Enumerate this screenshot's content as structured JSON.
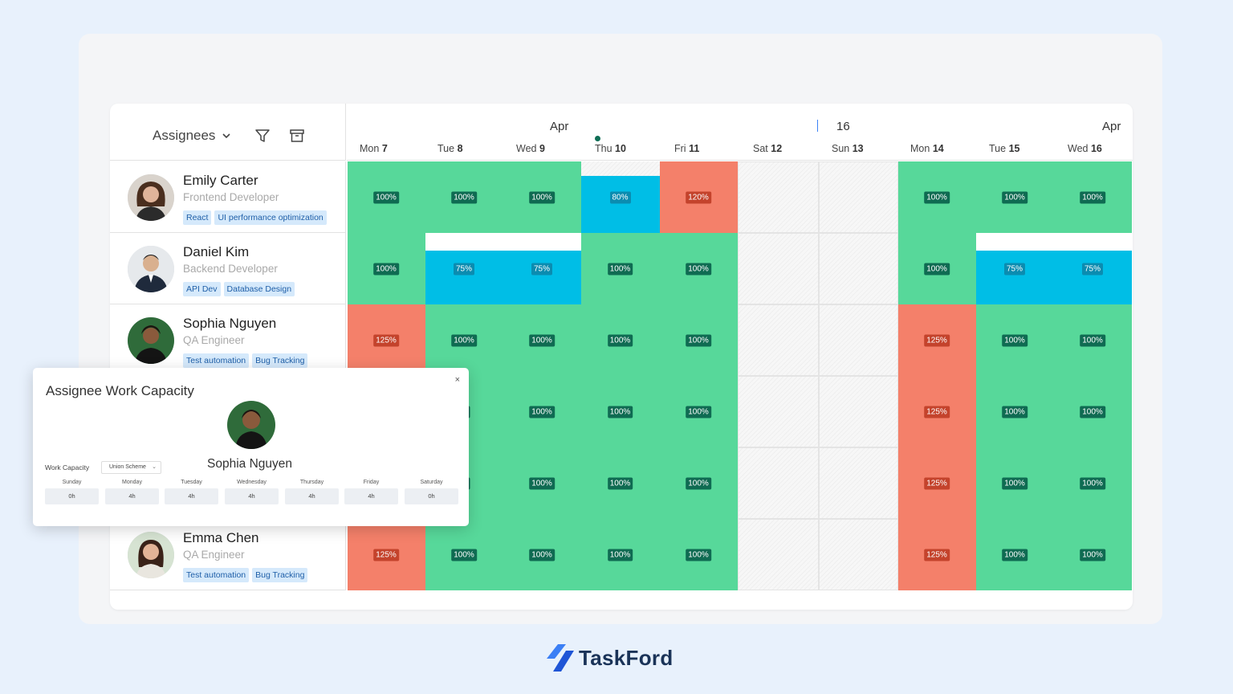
{
  "header": {
    "assignees_label": "Assignees",
    "months": [
      {
        "label": "Apr"
      },
      {
        "label": "16"
      },
      {
        "label": "Apr"
      }
    ],
    "days": [
      {
        "dow": "Mon",
        "num": "7"
      },
      {
        "dow": "Tue",
        "num": "8"
      },
      {
        "dow": "Wed",
        "num": "9"
      },
      {
        "dow": "Thu",
        "num": "10"
      },
      {
        "dow": "Fri",
        "num": "11"
      },
      {
        "dow": "Sat",
        "num": "12"
      },
      {
        "dow": "Sun",
        "num": "13"
      },
      {
        "dow": "Mon",
        "num": "14"
      },
      {
        "dow": "Tue",
        "num": "15"
      },
      {
        "dow": "Wed",
        "num": "16"
      }
    ]
  },
  "assignees": [
    {
      "name": "Emily Carter",
      "role": "Frontend Developer",
      "tags": [
        "React",
        "UI performance optimization"
      ],
      "capacity": [
        "100%",
        "100%",
        "100%",
        "80%",
        "120%",
        "",
        "",
        "100%",
        "100%",
        "100%"
      ]
    },
    {
      "name": "Daniel Kim",
      "role": "Backend Developer",
      "tags": [
        "API Dev",
        "Database Design"
      ],
      "capacity": [
        "100%",
        "75%",
        "75%",
        "100%",
        "100%",
        "",
        "",
        "100%",
        "75%",
        "75%"
      ]
    },
    {
      "name": "Sophia Nguyen",
      "role": "QA Engineer",
      "tags": [
        "Test automation",
        "Bug Tracking"
      ],
      "capacity": [
        "125%",
        "100%",
        "100%",
        "100%",
        "100%",
        "",
        "",
        "125%",
        "100%",
        "100%"
      ]
    },
    {
      "name": "",
      "role": "",
      "tags": [],
      "capacity": [
        "",
        "%",
        "100%",
        "100%",
        "100%",
        "",
        "",
        "125%",
        "100%",
        "100%"
      ]
    },
    {
      "name": "",
      "role": "",
      "tags": [],
      "capacity": [
        "",
        "%",
        "100%",
        "100%",
        "100%",
        "",
        "",
        "125%",
        "100%",
        "100%"
      ]
    },
    {
      "name": "Emma Chen",
      "role": "QA Engineer",
      "tags": [
        "Test automation",
        "Bug Tracking"
      ],
      "capacity": [
        "125%",
        "100%",
        "100%",
        "100%",
        "100%",
        "",
        "",
        "125%",
        "100%",
        "100%"
      ]
    }
  ],
  "popup": {
    "title": "Assignee Work Capacity",
    "close": "×",
    "name": "Sophia Nguyen",
    "work_capacity_label": "Work Capacity",
    "scheme_value": "Union Scheme",
    "days": [
      {
        "name": "Sunday",
        "hours": "0h"
      },
      {
        "name": "Monday",
        "hours": "4h"
      },
      {
        "name": "Tuesday",
        "hours": "4h"
      },
      {
        "name": "Wednesday",
        "hours": "4h"
      },
      {
        "name": "Thursday",
        "hours": "4h"
      },
      {
        "name": "Friday",
        "hours": "4h"
      },
      {
        "name": "Saturday",
        "hours": "0h"
      }
    ]
  },
  "brand": {
    "name": "TaskFord"
  },
  "colors": {
    "full": "#57d89a",
    "under": "#00bee6",
    "over": "#f4806a",
    "badge": "#0f6b52",
    "brand": "#1a3358"
  }
}
